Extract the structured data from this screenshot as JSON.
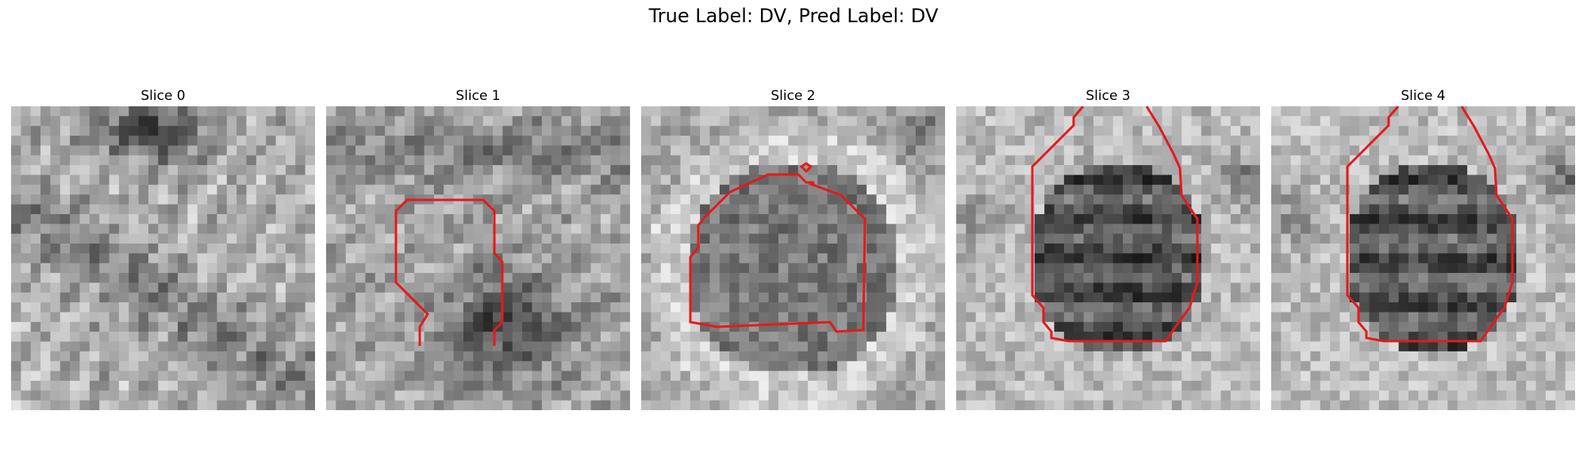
{
  "figure": {
    "title": "True Label: DV, Pred Label: DV",
    "contour_color": "#e41a1c"
  },
  "slices": [
    {
      "title": "Slice 0",
      "has_contour": false
    },
    {
      "title": "Slice 1",
      "has_contour": true
    },
    {
      "title": "Slice 2",
      "has_contour": true
    },
    {
      "title": "Slice 3",
      "has_contour": true
    },
    {
      "title": "Slice 4",
      "has_contour": true
    }
  ]
}
